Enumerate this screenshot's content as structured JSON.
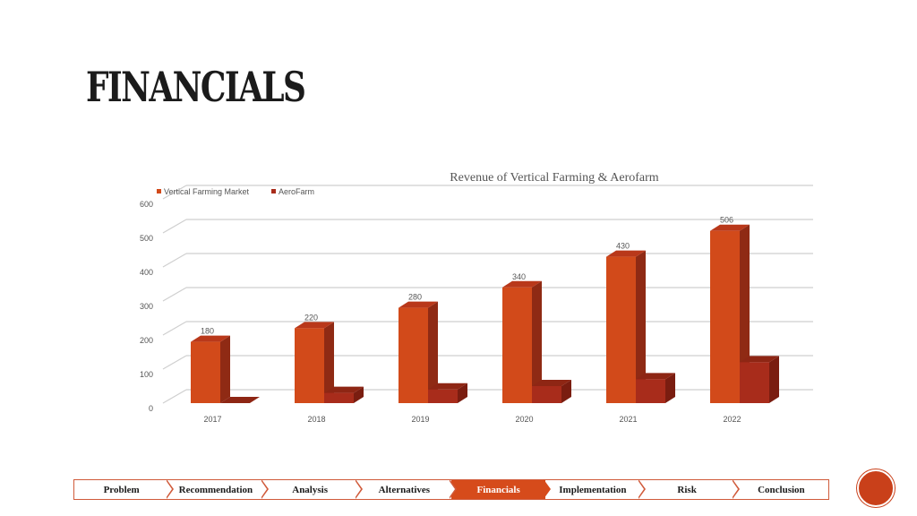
{
  "slide": {
    "title": "FINANCIALS"
  },
  "chart_data": {
    "type": "bar",
    "title": "Revenue of Vertical Farming  & Aerofarm",
    "categories": [
      "2017",
      "2018",
      "2019",
      "2020",
      "2021",
      "2022"
    ],
    "series": [
      {
        "name": "Vertical Farming Market",
        "values": [
          180,
          220,
          280,
          340,
          430,
          506
        ],
        "color": "#d24a1a"
      },
      {
        "name": "AeroFarm",
        "values": [
          0,
          30,
          40,
          50,
          70,
          120
        ],
        "color": "#a82c1b"
      }
    ],
    "data_labels": [
      "180",
      "220",
      "280",
      "340",
      "430",
      "506"
    ],
    "yticks": [
      "0",
      "100",
      "200",
      "300",
      "400",
      "500",
      "600"
    ],
    "ylim": [
      0,
      600
    ],
    "grid": true,
    "legend": "top-left"
  },
  "nav": {
    "items": [
      {
        "label": "Problem",
        "active": false
      },
      {
        "label": "Recommendation",
        "active": false
      },
      {
        "label": "Analysis",
        "active": false
      },
      {
        "label": "Alternatives",
        "active": false
      },
      {
        "label": "Financials",
        "active": true
      },
      {
        "label": "Implementation",
        "active": false
      },
      {
        "label": "Risk",
        "active": false
      },
      {
        "label": "Conclusion",
        "active": false
      }
    ]
  },
  "badge": {
    "text": ""
  }
}
